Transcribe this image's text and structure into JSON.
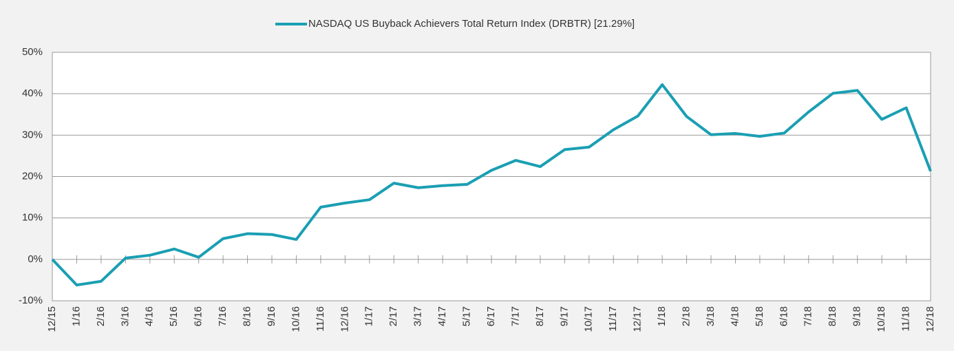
{
  "chart_data": {
    "type": "line",
    "categories": [
      "12/15",
      "1/16",
      "2/16",
      "3/16",
      "4/16",
      "5/16",
      "6/16",
      "7/16",
      "8/16",
      "9/16",
      "10/16",
      "11/16",
      "12/16",
      "1/17",
      "2/17",
      "3/17",
      "4/17",
      "5/17",
      "6/17",
      "7/17",
      "8/17",
      "9/17",
      "10/17",
      "11/17",
      "12/17",
      "1/18",
      "2/18",
      "3/18",
      "4/18",
      "5/18",
      "6/18",
      "7/18",
      "8/18",
      "9/18",
      "10/18",
      "11/18",
      "12/18"
    ],
    "series": [
      {
        "name": "NASDAQ US Buyback Achievers Total Return Index (DRBTR) [21.29%]",
        "color": "#1a9fb3",
        "values": [
          0,
          -6.2,
          -5.3,
          0.3,
          1.0,
          2.5,
          0.5,
          5.0,
          6.2,
          6.0,
          4.8,
          12.6,
          13.6,
          14.4,
          18.4,
          17.3,
          17.8,
          18.1,
          21.5,
          23.9,
          22.4,
          26.5,
          27.1,
          31.3,
          34.6,
          42.2,
          34.5,
          30.1,
          30.4,
          29.7,
          30.5,
          35.6,
          40.1,
          40.8,
          33.8,
          36.6,
          21.29
        ]
      }
    ],
    "ylim": [
      -10,
      50
    ],
    "yticks": [
      {
        "value": -10,
        "label": "-10%"
      },
      {
        "value": 0,
        "label": "0%"
      },
      {
        "value": 10,
        "label": "10%"
      },
      {
        "value": 20,
        "label": "20%"
      },
      {
        "value": 30,
        "label": "30%"
      },
      {
        "value": 40,
        "label": "40%"
      },
      {
        "value": 50,
        "label": "50%"
      }
    ],
    "grid": true,
    "legend": "top"
  }
}
